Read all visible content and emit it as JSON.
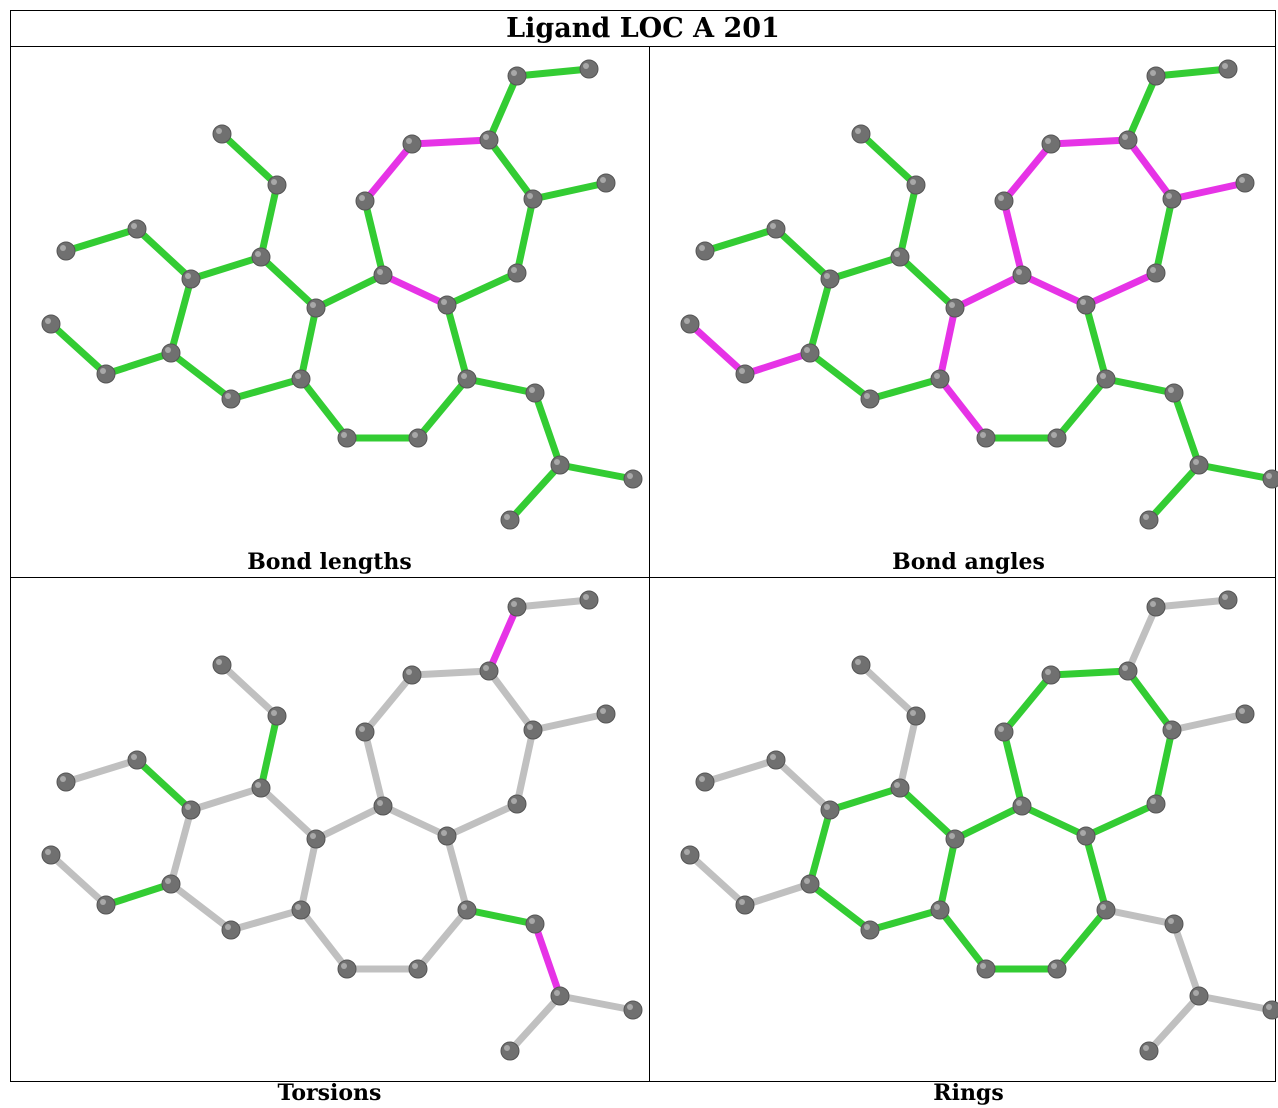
{
  "title": "Ligand LOC A 201",
  "colors": {
    "bond_ok": "#33cc33",
    "bond_outlier": "#e633e6",
    "bond_neutral": "#c0c0c0",
    "atom": "#707070"
  },
  "panels": [
    {
      "caption": "Bond lengths",
      "outliers": [
        [
          8,
          9
        ],
        [
          9,
          10
        ],
        [
          7,
          14
        ]
      ],
      "neutral": [],
      "style": "all-ok"
    },
    {
      "caption": "Bond angles",
      "outliers": [
        [
          8,
          9
        ],
        [
          9,
          10
        ],
        [
          10,
          11
        ],
        [
          11,
          12
        ],
        [
          12,
          26
        ],
        [
          5,
          7
        ],
        [
          7,
          14
        ],
        [
          5,
          6
        ],
        [
          6,
          18
        ],
        [
          18,
          19
        ],
        [
          0,
          1
        ],
        [
          0,
          19
        ]
      ],
      "neutral": [],
      "style": "all-ok"
    },
    {
      "caption": "Torsions",
      "outliers": [
        [
          9,
          10
        ],
        [
          15,
          16
        ]
      ],
      "ok_only": [
        [
          3,
          24
        ],
        [
          19,
          20
        ],
        [
          20,
          21
        ],
        [
          21,
          0
        ],
        [
          14,
          15
        ]
      ],
      "style": "neutral"
    },
    {
      "caption": "Rings",
      "outliers": [],
      "ok_only": [
        [
          0,
          1
        ],
        [
          1,
          2
        ],
        [
          2,
          3
        ],
        [
          3,
          4
        ],
        [
          4,
          5
        ],
        [
          5,
          6
        ],
        [
          6,
          0
        ],
        [
          4,
          7
        ],
        [
          7,
          8
        ],
        [
          8,
          9
        ],
        [
          9,
          10
        ],
        [
          10,
          11
        ],
        [
          11,
          12
        ],
        [
          12,
          13
        ],
        [
          13,
          14
        ],
        [
          14,
          4
        ],
        [
          14,
          15
        ],
        [
          15,
          16
        ],
        [
          16,
          17
        ],
        [
          17,
          6
        ]
      ],
      "style": "rings"
    }
  ]
}
